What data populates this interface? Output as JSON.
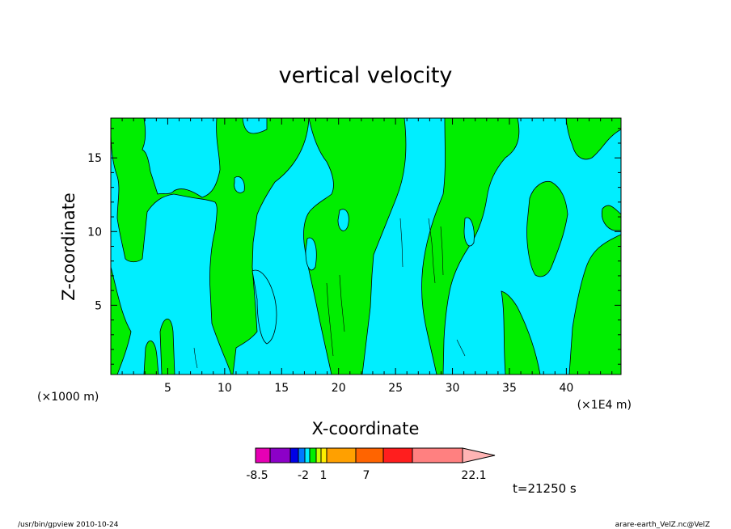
{
  "chart_data": {
    "type": "heatmap",
    "title": "vertical velocity",
    "xlabel": "X-coordinate",
    "ylabel": "Z-coordinate",
    "x_unit_left": "(×1000 m)",
    "x_unit_right": "(×1E4 m)",
    "xlim": [
      0,
      44.8
    ],
    "ylim": [
      0.3,
      17.7
    ],
    "x_ticks": [
      "5",
      "10",
      "15",
      "20",
      "25",
      "30",
      "35",
      "40"
    ],
    "y_ticks": [
      "5",
      "10",
      "15"
    ],
    "dominant_fill": {
      "positive_region": "#00ee00",
      "negative_region": "#00eeff"
    },
    "colorbar": {
      "tick_labels": [
        "-8.5",
        "-2",
        "1",
        "7",
        "22.1"
      ],
      "colors": [
        "#e600b4",
        "#8c00c8",
        "#0000e6",
        "#0078ff",
        "#00eeff",
        "#00ee00",
        "#c8ff00",
        "#ffee00",
        "#ffa000",
        "#ff6400",
        "#ff1e1e",
        "#ff8080",
        "#ffb4b4"
      ]
    },
    "annotation": "t=21250 s"
  },
  "footer": {
    "left": "/usr/bin/gpview   2010-10-24",
    "right": "arare-earth_VelZ.nc@VelZ"
  }
}
